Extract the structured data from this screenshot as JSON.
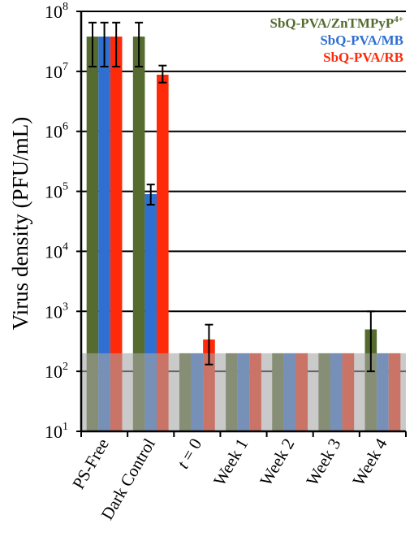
{
  "chart_data": {
    "type": "bar",
    "y_scale": "log",
    "ylabel": "Virus density (PFU/mL)",
    "ylim": [
      10,
      100000000
    ],
    "y_ticks": [
      {
        "value": 10,
        "base": "10",
        "exp": "1"
      },
      {
        "value": 100,
        "base": "10",
        "exp": "2"
      },
      {
        "value": 1000,
        "base": "10",
        "exp": "3"
      },
      {
        "value": 10000,
        "base": "10",
        "exp": "4"
      },
      {
        "value": 100000,
        "base": "10",
        "exp": "5"
      },
      {
        "value": 1000000,
        "base": "10",
        "exp": "6"
      },
      {
        "value": 10000000,
        "base": "10",
        "exp": "7"
      },
      {
        "value": 100000000,
        "base": "10",
        "exp": "8"
      }
    ],
    "categories": [
      {
        "label": "PS-Free",
        "italic_prefix": "",
        "rest": ""
      },
      {
        "label": "Dark Control",
        "italic_prefix": "",
        "rest": ""
      },
      {
        "label": "t = 0",
        "italic_prefix": "t",
        "rest": " = 0"
      },
      {
        "label": "Week 1",
        "italic_prefix": "",
        "rest": ""
      },
      {
        "label": "Week 2",
        "italic_prefix": "",
        "rest": ""
      },
      {
        "label": "Week 3",
        "italic_prefix": "",
        "rest": ""
      },
      {
        "label": "Week 4",
        "italic_prefix": "",
        "rest": ""
      }
    ],
    "series": [
      {
        "name": "SbQ-PVA/ZnTMPyP4+",
        "name_base": "SbQ-PVA/ZnTMPyP",
        "name_sup": "4+",
        "color": "#556b2f",
        "values": [
          38000000,
          38000000,
          200,
          200,
          200,
          200,
          500
        ],
        "error": [
          [
            12000000,
            65000000
          ],
          [
            12000000,
            65000000
          ],
          null,
          null,
          null,
          null,
          [
            100,
            1000
          ]
        ]
      },
      {
        "name": "SbQ-PVA/MB",
        "name_base": "SbQ-PVA/MB",
        "name_sup": "",
        "color": "#2e6fd1",
        "values": [
          38000000,
          90000,
          200,
          200,
          200,
          200,
          200
        ],
        "error": [
          [
            12000000,
            65000000
          ],
          [
            60000,
            130000
          ],
          null,
          null,
          null,
          null,
          null
        ]
      },
      {
        "name": "SbQ-PVA/RB",
        "name_base": "SbQ-PVA/RB",
        "name_sup": "",
        "color": "#ff2a0a",
        "values": [
          38000000,
          8800000,
          340,
          200,
          200,
          200,
          200
        ],
        "error": [
          [
            12000000,
            65000000
          ],
          [
            6500000,
            12500000
          ],
          [
            130,
            600
          ],
          null,
          null,
          null,
          null
        ]
      }
    ],
    "detection_limit": 200,
    "detection_band_color": "#a6a6a6",
    "legend_position": "top-right",
    "grid": "horizontal"
  }
}
